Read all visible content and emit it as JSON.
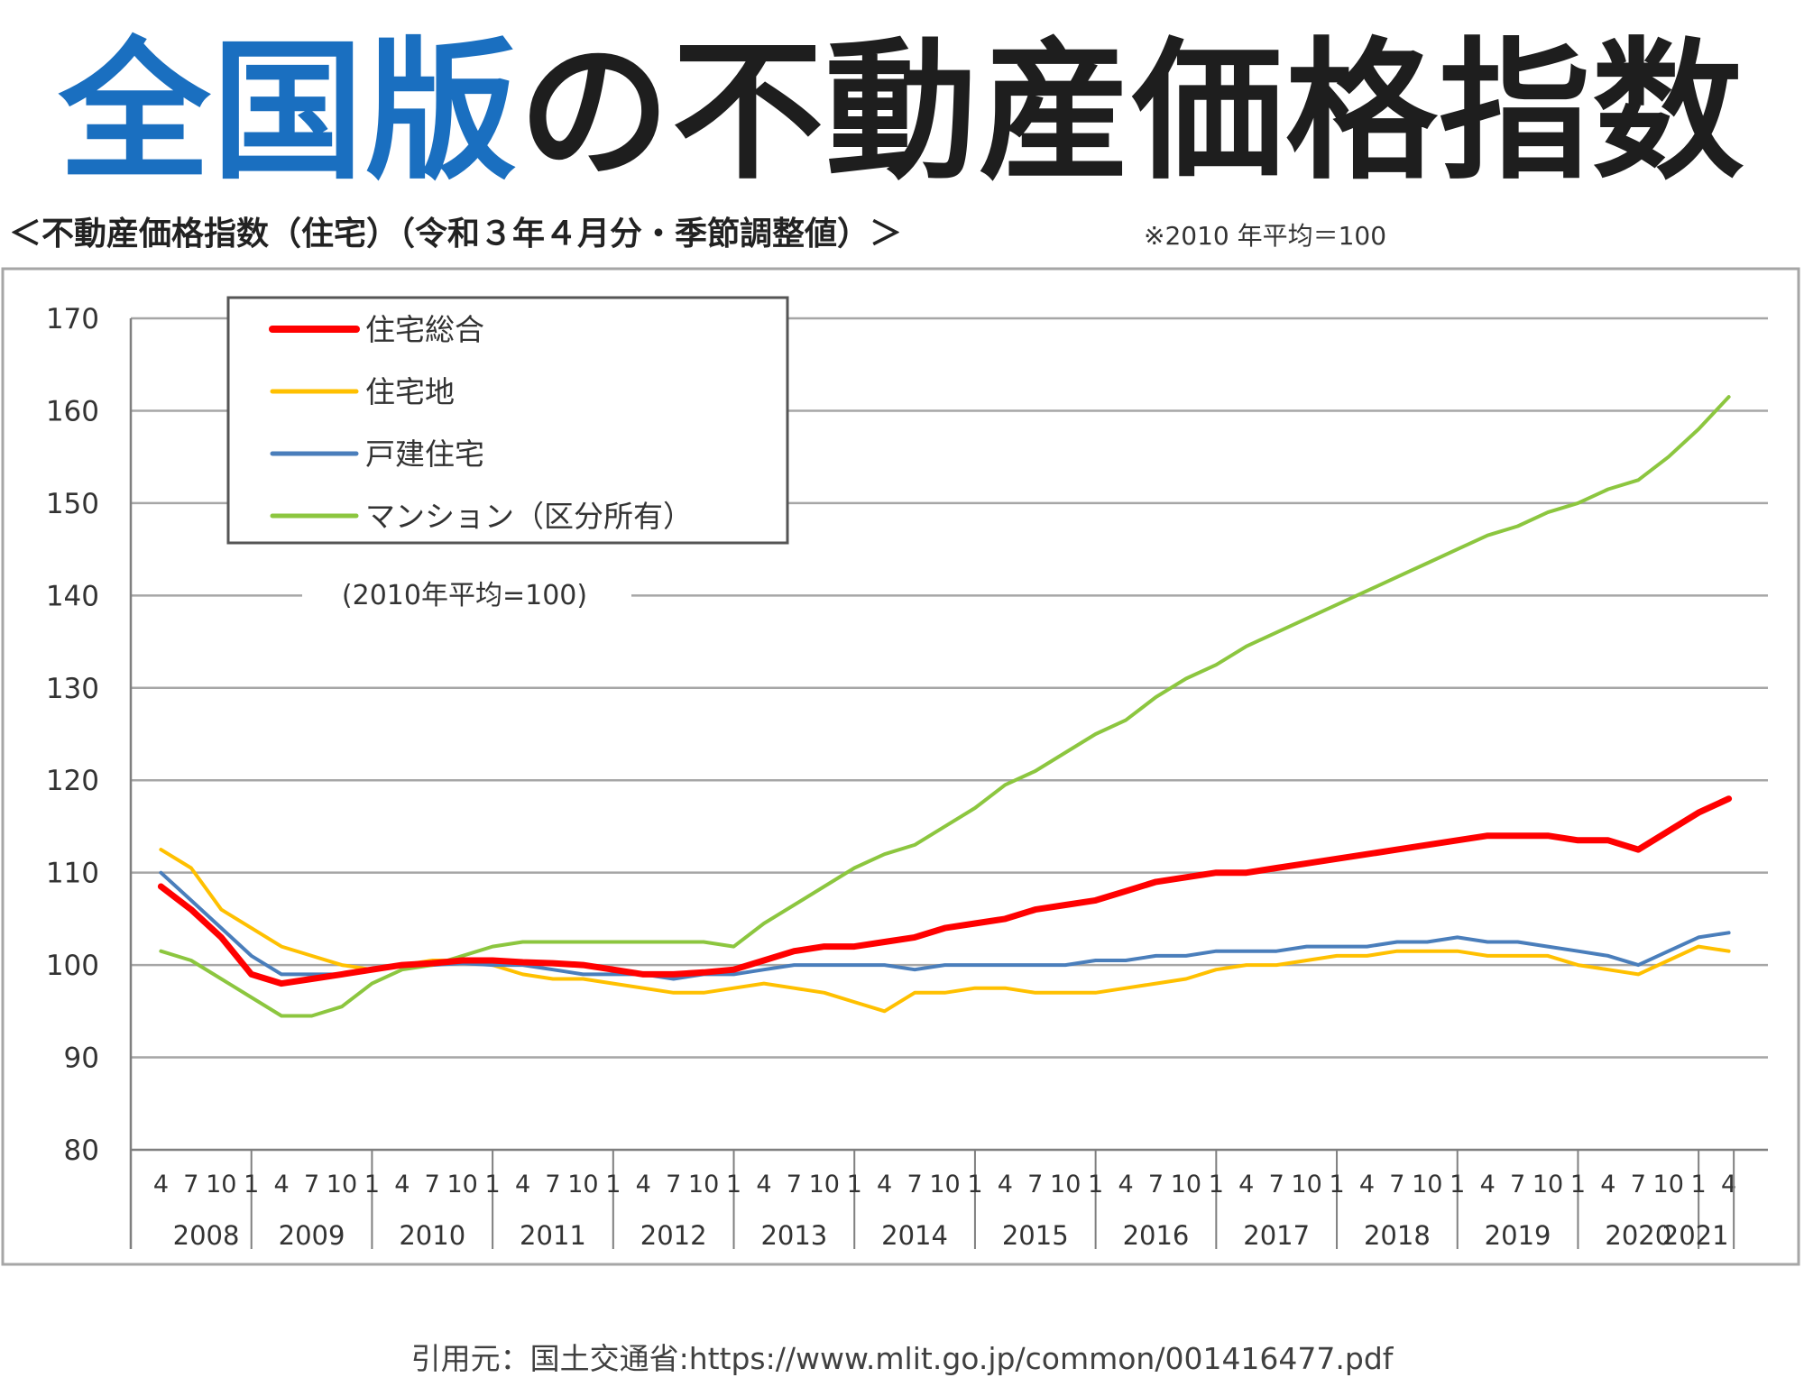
{
  "headline": {
    "blue": "全国版",
    "black": "の不動産価格指数"
  },
  "subtitle": "＜不動産価格指数（住宅）（令和３年４月分・季節調整値）＞",
  "base_note": "※2010 年平均＝100",
  "source": "引用元：国土交通省:https://www.mlit.go.jp/common/001416477.pdf",
  "chart_data": {
    "type": "line",
    "annotation": "(2010年平均=100)",
    "ylim": [
      80,
      170
    ],
    "yticks": [
      80,
      90,
      100,
      110,
      120,
      130,
      140,
      150,
      160,
      170
    ],
    "grid": true,
    "legend_position": "top-left",
    "x_range": [
      "2008-04",
      "2021-04"
    ],
    "month_tick_labels": [
      "1",
      "4",
      "7",
      "10"
    ],
    "years": [
      "2008",
      "2009",
      "2010",
      "2011",
      "2012",
      "2013",
      "2014",
      "2015",
      "2016",
      "2017",
      "2018",
      "2019",
      "2020",
      "2021"
    ],
    "series": [
      {
        "name": "住宅総合",
        "color": "#ff0000",
        "width": 7,
        "points": [
          [
            "2008-04",
            108.5
          ],
          [
            "2008-07",
            106
          ],
          [
            "2008-10",
            103
          ],
          [
            "2009-01",
            99
          ],
          [
            "2009-04",
            98
          ],
          [
            "2009-07",
            98.5
          ],
          [
            "2009-10",
            99
          ],
          [
            "2010-01",
            99.5
          ],
          [
            "2010-04",
            100
          ],
          [
            "2010-07",
            100.2
          ],
          [
            "2010-10",
            100.5
          ],
          [
            "2011-01",
            100.5
          ],
          [
            "2011-04",
            100.3
          ],
          [
            "2011-07",
            100.2
          ],
          [
            "2011-10",
            100
          ],
          [
            "2012-01",
            99.5
          ],
          [
            "2012-04",
            99
          ],
          [
            "2012-07",
            99
          ],
          [
            "2012-10",
            99.2
          ],
          [
            "2013-01",
            99.5
          ],
          [
            "2013-04",
            100.5
          ],
          [
            "2013-07",
            101.5
          ],
          [
            "2013-10",
            102
          ],
          [
            "2014-01",
            102
          ],
          [
            "2014-04",
            102.5
          ],
          [
            "2014-07",
            103
          ],
          [
            "2014-10",
            104
          ],
          [
            "2015-01",
            104.5
          ],
          [
            "2015-04",
            105
          ],
          [
            "2015-07",
            106
          ],
          [
            "2015-10",
            106.5
          ],
          [
            "2016-01",
            107
          ],
          [
            "2016-04",
            108
          ],
          [
            "2016-07",
            109
          ],
          [
            "2016-10",
            109.5
          ],
          [
            "2017-01",
            110
          ],
          [
            "2017-04",
            110
          ],
          [
            "2017-07",
            110.5
          ],
          [
            "2017-10",
            111
          ],
          [
            "2018-01",
            111.5
          ],
          [
            "2018-04",
            112
          ],
          [
            "2018-07",
            112.5
          ],
          [
            "2018-10",
            113
          ],
          [
            "2019-01",
            113.5
          ],
          [
            "2019-04",
            114
          ],
          [
            "2019-07",
            114
          ],
          [
            "2019-10",
            114
          ],
          [
            "2020-01",
            113.5
          ],
          [
            "2020-04",
            113.5
          ],
          [
            "2020-07",
            112.5
          ],
          [
            "2020-10",
            114.5
          ],
          [
            "2021-01",
            116.5
          ],
          [
            "2021-04",
            118
          ]
        ]
      },
      {
        "name": "住宅地",
        "color": "#ffc000",
        "width": 4,
        "points": [
          [
            "2008-04",
            112.5
          ],
          [
            "2008-07",
            110.5
          ],
          [
            "2008-10",
            106
          ],
          [
            "2009-01",
            104
          ],
          [
            "2009-04",
            102
          ],
          [
            "2009-07",
            101
          ],
          [
            "2009-10",
            100
          ],
          [
            "2010-01",
            99.5
          ],
          [
            "2010-04",
            100
          ],
          [
            "2010-07",
            100.5
          ],
          [
            "2010-10",
            100.5
          ],
          [
            "2011-01",
            100
          ],
          [
            "2011-04",
            99
          ],
          [
            "2011-07",
            98.5
          ],
          [
            "2011-10",
            98.5
          ],
          [
            "2012-01",
            98
          ],
          [
            "2012-04",
            97.5
          ],
          [
            "2012-07",
            97
          ],
          [
            "2012-10",
            97
          ],
          [
            "2013-01",
            97.5
          ],
          [
            "2013-04",
            98
          ],
          [
            "2013-07",
            97.5
          ],
          [
            "2013-10",
            97
          ],
          [
            "2014-01",
            96
          ],
          [
            "2014-04",
            95
          ],
          [
            "2014-07",
            97
          ],
          [
            "2014-10",
            97
          ],
          [
            "2015-01",
            97.5
          ],
          [
            "2015-04",
            97.5
          ],
          [
            "2015-07",
            97
          ],
          [
            "2015-10",
            97
          ],
          [
            "2016-01",
            97
          ],
          [
            "2016-04",
            97.5
          ],
          [
            "2016-07",
            98
          ],
          [
            "2016-10",
            98.5
          ],
          [
            "2017-01",
            99.5
          ],
          [
            "2017-04",
            100
          ],
          [
            "2017-07",
            100
          ],
          [
            "2017-10",
            100.5
          ],
          [
            "2018-01",
            101
          ],
          [
            "2018-04",
            101
          ],
          [
            "2018-07",
            101.5
          ],
          [
            "2018-10",
            101.5
          ],
          [
            "2019-01",
            101.5
          ],
          [
            "2019-04",
            101
          ],
          [
            "2019-07",
            101
          ],
          [
            "2019-10",
            101
          ],
          [
            "2020-01",
            100
          ],
          [
            "2020-04",
            99.5
          ],
          [
            "2020-07",
            99
          ],
          [
            "2020-10",
            100.5
          ],
          [
            "2021-01",
            102
          ],
          [
            "2021-04",
            101.5
          ]
        ]
      },
      {
        "name": "戸建住宅",
        "color": "#4a7ebb",
        "width": 4,
        "points": [
          [
            "2008-04",
            110
          ],
          [
            "2008-07",
            107
          ],
          [
            "2008-10",
            104
          ],
          [
            "2009-01",
            101
          ],
          [
            "2009-04",
            99
          ],
          [
            "2009-07",
            99
          ],
          [
            "2009-10",
            99
          ],
          [
            "2010-01",
            99.5
          ],
          [
            "2010-04",
            100
          ],
          [
            "2010-07",
            100
          ],
          [
            "2010-10",
            100.2
          ],
          [
            "2011-01",
            100
          ],
          [
            "2011-04",
            100
          ],
          [
            "2011-07",
            99.5
          ],
          [
            "2011-10",
            99
          ],
          [
            "2012-01",
            99
          ],
          [
            "2012-04",
            99
          ],
          [
            "2012-07",
            98.5
          ],
          [
            "2012-10",
            99
          ],
          [
            "2013-01",
            99
          ],
          [
            "2013-04",
            99.5
          ],
          [
            "2013-07",
            100
          ],
          [
            "2013-10",
            100
          ],
          [
            "2014-01",
            100
          ],
          [
            "2014-04",
            100
          ],
          [
            "2014-07",
            99.5
          ],
          [
            "2014-10",
            100
          ],
          [
            "2015-01",
            100
          ],
          [
            "2015-04",
            100
          ],
          [
            "2015-07",
            100
          ],
          [
            "2015-10",
            100
          ],
          [
            "2016-01",
            100.5
          ],
          [
            "2016-04",
            100.5
          ],
          [
            "2016-07",
            101
          ],
          [
            "2016-10",
            101
          ],
          [
            "2017-01",
            101.5
          ],
          [
            "2017-04",
            101.5
          ],
          [
            "2017-07",
            101.5
          ],
          [
            "2017-10",
            102
          ],
          [
            "2018-01",
            102
          ],
          [
            "2018-04",
            102
          ],
          [
            "2018-07",
            102.5
          ],
          [
            "2018-10",
            102.5
          ],
          [
            "2019-01",
            103
          ],
          [
            "2019-04",
            102.5
          ],
          [
            "2019-07",
            102.5
          ],
          [
            "2019-10",
            102
          ],
          [
            "2020-01",
            101.5
          ],
          [
            "2020-04",
            101
          ],
          [
            "2020-07",
            100
          ],
          [
            "2020-10",
            101.5
          ],
          [
            "2021-01",
            103
          ],
          [
            "2021-04",
            103.5
          ]
        ]
      },
      {
        "name": "マンション（区分所有）",
        "color": "#8cc63f",
        "width": 4,
        "points": [
          [
            "2008-04",
            101.5
          ],
          [
            "2008-07",
            100.5
          ],
          [
            "2008-10",
            98.5
          ],
          [
            "2009-01",
            96.5
          ],
          [
            "2009-04",
            94.5
          ],
          [
            "2009-07",
            94.5
          ],
          [
            "2009-10",
            95.5
          ],
          [
            "2010-01",
            98
          ],
          [
            "2010-04",
            99.5
          ],
          [
            "2010-07",
            100
          ],
          [
            "2010-10",
            101
          ],
          [
            "2011-01",
            102
          ],
          [
            "2011-04",
            102.5
          ],
          [
            "2011-07",
            102.5
          ],
          [
            "2011-10",
            102.5
          ],
          [
            "2012-01",
            102.5
          ],
          [
            "2012-04",
            102.5
          ],
          [
            "2012-07",
            102.5
          ],
          [
            "2012-10",
            102.5
          ],
          [
            "2013-01",
            102
          ],
          [
            "2013-04",
            104.5
          ],
          [
            "2013-07",
            106.5
          ],
          [
            "2013-10",
            108.5
          ],
          [
            "2014-01",
            110.5
          ],
          [
            "2014-04",
            112
          ],
          [
            "2014-07",
            113
          ],
          [
            "2014-10",
            115
          ],
          [
            "2015-01",
            117
          ],
          [
            "2015-04",
            119.5
          ],
          [
            "2015-07",
            121
          ],
          [
            "2015-10",
            123
          ],
          [
            "2016-01",
            125
          ],
          [
            "2016-04",
            126.5
          ],
          [
            "2016-07",
            129
          ],
          [
            "2016-10",
            131
          ],
          [
            "2017-01",
            132.5
          ],
          [
            "2017-04",
            134.5
          ],
          [
            "2017-07",
            136
          ],
          [
            "2017-10",
            137.5
          ],
          [
            "2018-01",
            139
          ],
          [
            "2018-04",
            140.5
          ],
          [
            "2018-07",
            142
          ],
          [
            "2018-10",
            143.5
          ],
          [
            "2019-01",
            145
          ],
          [
            "2019-04",
            146.5
          ],
          [
            "2019-07",
            147.5
          ],
          [
            "2019-10",
            149
          ],
          [
            "2020-01",
            150
          ],
          [
            "2020-04",
            151.5
          ],
          [
            "2020-07",
            152.5
          ],
          [
            "2020-10",
            155
          ],
          [
            "2021-01",
            158
          ],
          [
            "2021-04",
            161.5
          ]
        ]
      }
    ]
  }
}
